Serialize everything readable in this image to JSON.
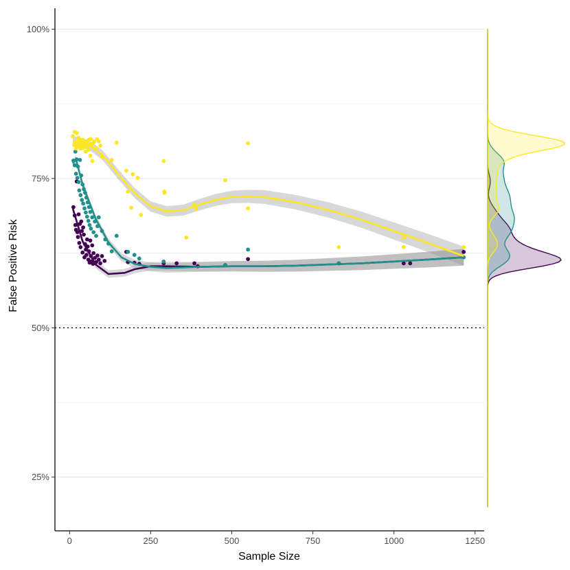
{
  "chart_data": {
    "type": "scatter",
    "xlabel": "Sample Size",
    "ylabel": "False Positive Risk",
    "xlim": [
      -45,
      1278
    ],
    "ylim": [
      0.16,
      1.035
    ],
    "x_ticks": [
      0,
      250,
      500,
      750,
      1000,
      1250
    ],
    "x_tick_labels": [
      "0",
      "250",
      "500",
      "750",
      "1000",
      "1250"
    ],
    "y_ticks": [
      0.25,
      0.5,
      0.75,
      1.0
    ],
    "y_tick_labels": [
      "25%",
      "50%",
      "75%",
      "100%"
    ],
    "y_minor_gridlines": [
      0.375,
      0.625,
      0.875
    ],
    "reference_line": {
      "y": 0.5,
      "style": "dotted"
    },
    "grid": "horizontal",
    "legend": "none",
    "marginal_density": "right",
    "series": [
      {
        "color": "#440154",
        "points": [
          [
            12,
            0.702
          ],
          [
            16,
            0.688
          ],
          [
            18,
            0.672
          ],
          [
            20,
            0.664
          ],
          [
            22,
            0.745
          ],
          [
            24,
            0.66
          ],
          [
            26,
            0.652
          ],
          [
            28,
            0.69
          ],
          [
            30,
            0.642
          ],
          [
            32,
            0.674
          ],
          [
            34,
            0.635
          ],
          [
            36,
            0.678
          ],
          [
            38,
            0.662
          ],
          [
            40,
            0.626
          ],
          [
            42,
            0.668
          ],
          [
            44,
            0.656
          ],
          [
            46,
            0.618
          ],
          [
            48,
            0.64
          ],
          [
            50,
            0.631
          ],
          [
            52,
            0.622
          ],
          [
            54,
            0.648
          ],
          [
            56,
            0.636
          ],
          [
            58,
            0.614
          ],
          [
            60,
            0.628
          ],
          [
            62,
            0.609
          ],
          [
            64,
            0.646
          ],
          [
            66,
            0.62
          ],
          [
            68,
            0.611
          ],
          [
            70,
            0.638
          ],
          [
            72,
            0.607
          ],
          [
            74,
            0.625
          ],
          [
            78,
            0.617
          ],
          [
            82,
            0.61
          ],
          [
            86,
            0.621
          ],
          [
            90,
            0.614
          ],
          [
            95,
            0.608
          ],
          [
            100,
            0.62
          ],
          [
            108,
            0.612
          ],
          [
            175,
            0.627
          ],
          [
            180,
            0.61
          ],
          [
            200,
            0.609
          ],
          [
            215,
            0.607
          ],
          [
            290,
            0.608
          ],
          [
            330,
            0.608
          ],
          [
            385,
            0.608
          ],
          [
            395,
            0.603
          ],
          [
            480,
            0.605
          ],
          [
            550,
            0.615
          ],
          [
            830,
            0.608
          ],
          [
            1030,
            0.608
          ],
          [
            1050,
            0.608
          ],
          [
            1215,
            0.627
          ]
        ],
        "fit": [
          [
            10,
            0.7
          ],
          [
            40,
            0.645
          ],
          [
            80,
            0.606
          ],
          [
            120,
            0.59
          ],
          [
            170,
            0.592
          ],
          [
            200,
            0.598
          ],
          [
            250,
            0.603
          ],
          [
            300,
            0.603
          ],
          [
            400,
            0.602
          ],
          [
            500,
            0.603
          ],
          [
            600,
            0.603
          ],
          [
            700,
            0.604
          ],
          [
            800,
            0.606
          ],
          [
            900,
            0.608
          ],
          [
            1000,
            0.611
          ],
          [
            1100,
            0.614
          ],
          [
            1215,
            0.618
          ]
        ]
      },
      {
        "color": "#21908C",
        "points": [
          [
            12,
            0.78
          ],
          [
            16,
            0.772
          ],
          [
            18,
            0.795
          ],
          [
            20,
            0.758
          ],
          [
            22,
            0.782
          ],
          [
            24,
            0.751
          ],
          [
            26,
            0.77
          ],
          [
            28,
            0.744
          ],
          [
            30,
            0.73
          ],
          [
            32,
            0.781
          ],
          [
            34,
            0.722
          ],
          [
            36,
            0.755
          ],
          [
            38,
            0.714
          ],
          [
            40,
            0.74
          ],
          [
            42,
            0.708
          ],
          [
            44,
            0.732
          ],
          [
            46,
            0.7
          ],
          [
            48,
            0.726
          ],
          [
            50,
            0.693
          ],
          [
            52,
            0.718
          ],
          [
            54,
            0.686
          ],
          [
            56,
            0.71
          ],
          [
            58,
            0.679
          ],
          [
            60,
            0.702
          ],
          [
            62,
            0.672
          ],
          [
            64,
            0.694
          ],
          [
            66,
            0.666
          ],
          [
            70,
            0.685
          ],
          [
            74,
            0.66
          ],
          [
            78,
            0.678
          ],
          [
            82,
            0.654
          ],
          [
            86,
            0.67
          ],
          [
            90,
            0.685
          ],
          [
            100,
            0.662
          ],
          [
            110,
            0.648
          ],
          [
            120,
            0.641
          ],
          [
            130,
            0.628
          ],
          [
            145,
            0.654
          ],
          [
            180,
            0.627
          ],
          [
            200,
            0.622
          ],
          [
            215,
            0.616
          ],
          [
            290,
            0.611
          ],
          [
            480,
            0.605
          ],
          [
            550,
            0.631
          ],
          [
            830,
            0.608
          ],
          [
            1215,
            0.618
          ]
        ],
        "fit": [
          [
            10,
            0.775
          ],
          [
            20,
            0.782
          ],
          [
            40,
            0.74
          ],
          [
            80,
            0.683
          ],
          [
            120,
            0.643
          ],
          [
            160,
            0.618
          ],
          [
            200,
            0.607
          ],
          [
            250,
            0.602
          ],
          [
            300,
            0.6
          ],
          [
            400,
            0.602
          ],
          [
            500,
            0.603
          ],
          [
            600,
            0.603
          ],
          [
            700,
            0.604
          ],
          [
            800,
            0.606
          ],
          [
            900,
            0.608
          ],
          [
            1000,
            0.611
          ],
          [
            1100,
            0.614
          ],
          [
            1215,
            0.618
          ]
        ]
      },
      {
        "color": "#FDE725",
        "points": [
          [
            10,
            0.821
          ],
          [
            14,
            0.806
          ],
          [
            16,
            0.828
          ],
          [
            18,
            0.81
          ],
          [
            20,
            0.8
          ],
          [
            22,
            0.826
          ],
          [
            24,
            0.812
          ],
          [
            26,
            0.804
          ],
          [
            28,
            0.818
          ],
          [
            30,
            0.808
          ],
          [
            32,
            0.814
          ],
          [
            34,
            0.8
          ],
          [
            36,
            0.81
          ],
          [
            38,
            0.806
          ],
          [
            40,
            0.815
          ],
          [
            42,
            0.801
          ],
          [
            44,
            0.812
          ],
          [
            46,
            0.806
          ],
          [
            48,
            0.81
          ],
          [
            50,
            0.795
          ],
          [
            52,
            0.812
          ],
          [
            54,
            0.803
          ],
          [
            56,
            0.808
          ],
          [
            58,
            0.798
          ],
          [
            60,
            0.815
          ],
          [
            62,
            0.808
          ],
          [
            64,
            0.788
          ],
          [
            66,
            0.816
          ],
          [
            68,
            0.805
          ],
          [
            70,
            0.779
          ],
          [
            72,
            0.809
          ],
          [
            76,
            0.812
          ],
          [
            80,
            0.801
          ],
          [
            85,
            0.816
          ],
          [
            90,
            0.812
          ],
          [
            95,
            0.805
          ],
          [
            100,
            0.786
          ],
          [
            130,
            0.781
          ],
          [
            145,
            0.81
          ],
          [
            175,
            0.763
          ],
          [
            180,
            0.728
          ],
          [
            190,
            0.701
          ],
          [
            195,
            0.757
          ],
          [
            210,
            0.751
          ],
          [
            220,
            0.689
          ],
          [
            290,
            0.779
          ],
          [
            292,
            0.728
          ],
          [
            293,
            0.726
          ],
          [
            360,
            0.651
          ],
          [
            385,
            0.706
          ],
          [
            390,
            0.699
          ],
          [
            480,
            0.747
          ],
          [
            550,
            0.809
          ],
          [
            550,
            0.7
          ],
          [
            830,
            0.635
          ],
          [
            1030,
            0.635
          ],
          [
            1030,
            0.651
          ],
          [
            1215,
            0.635
          ]
        ],
        "fit": [
          [
            10,
            0.813
          ],
          [
            60,
            0.806
          ],
          [
            100,
            0.79
          ],
          [
            150,
            0.757
          ],
          [
            200,
            0.726
          ],
          [
            250,
            0.703
          ],
          [
            300,
            0.695
          ],
          [
            350,
            0.697
          ],
          [
            400,
            0.706
          ],
          [
            450,
            0.714
          ],
          [
            500,
            0.719
          ],
          [
            550,
            0.72
          ],
          [
            600,
            0.719
          ],
          [
            700,
            0.71
          ],
          [
            800,
            0.697
          ],
          [
            900,
            0.681
          ],
          [
            1000,
            0.662
          ],
          [
            1100,
            0.643
          ],
          [
            1215,
            0.62
          ]
        ]
      }
    ]
  }
}
